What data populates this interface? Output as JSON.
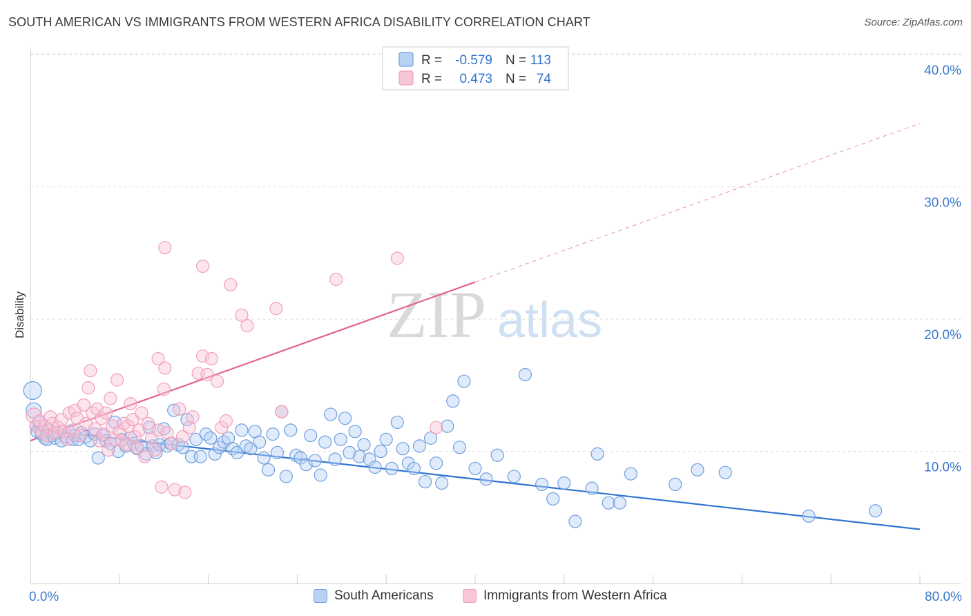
{
  "header": {
    "title": "SOUTH AMERICAN VS IMMIGRANTS FROM WESTERN AFRICA DISABILITY CORRELATION CHART",
    "source": "Source: ZipAtlas.com"
  },
  "watermark": {
    "zip": "ZIP",
    "atlas": "atlas"
  },
  "chart_data": {
    "type": "scatter",
    "title": "SOUTH AMERICAN VS IMMIGRANTS FROM WESTERN AFRICA DISABILITY CORRELATION CHART",
    "xlabel": "",
    "ylabel": "Disability",
    "xlim": [
      0,
      80
    ],
    "ylim": [
      0,
      41
    ],
    "x_tick_labels": [
      {
        "value": 0,
        "label": "0.0%"
      },
      {
        "value": 80,
        "label": "80.0%"
      }
    ],
    "y_tick_labels": [
      {
        "value": 10,
        "label": "10.0%"
      },
      {
        "value": 20,
        "label": "20.0%"
      },
      {
        "value": 30,
        "label": "30.0%"
      },
      {
        "value": 40,
        "label": "40.0%"
      }
    ],
    "grid": "horizontal dashed",
    "legend_position": "top-center",
    "stats": [
      {
        "r_label": "R =",
        "r_value": "-0.579",
        "n_label": "N =",
        "n_value": "113"
      },
      {
        "r_label": "R =",
        "r_value": "0.473",
        "n_label": "N =",
        "n_value": "74"
      }
    ],
    "series": [
      {
        "name": "South Americans",
        "color": "#6f9fe0",
        "line_color": "#2f74d0",
        "trend": {
          "x": [
            0,
            80
          ],
          "y": [
            11.7,
            4.1
          ],
          "dashed_to": null
        },
        "points": [
          [
            0.2,
            14.6
          ],
          [
            0.3,
            13.1
          ],
          [
            0.5,
            11.9
          ],
          [
            0.6,
            11.5
          ],
          [
            0.8,
            12.2
          ],
          [
            1.0,
            11.3
          ],
          [
            1.3,
            11.0
          ],
          [
            1.5,
            10.9
          ],
          [
            1.7,
            11.6
          ],
          [
            2.0,
            11.2
          ],
          [
            2.2,
            11.0
          ],
          [
            2.5,
            11.4
          ],
          [
            2.8,
            10.8
          ],
          [
            3.2,
            11.1
          ],
          [
            3.5,
            11.5
          ],
          [
            3.8,
            10.9
          ],
          [
            4.0,
            11.2
          ],
          [
            4.3,
            10.9
          ],
          [
            4.6,
            11.4
          ],
          [
            5.0,
            11.1
          ],
          [
            5.4,
            10.8
          ],
          [
            5.8,
            11.3
          ],
          [
            6.1,
            9.5
          ],
          [
            6.5,
            11.2
          ],
          [
            6.8,
            10.8
          ],
          [
            7.2,
            10.6
          ],
          [
            7.6,
            12.2
          ],
          [
            7.9,
            10.0
          ],
          [
            8.2,
            10.9
          ],
          [
            8.6,
            10.4
          ],
          [
            9.0,
            11.0
          ],
          [
            9.3,
            10.6
          ],
          [
            9.6,
            10.2
          ],
          [
            10.0,
            10.4
          ],
          [
            10.4,
            9.8
          ],
          [
            10.7,
            11.8
          ],
          [
            11.0,
            10.4
          ],
          [
            11.3,
            9.9
          ],
          [
            11.6,
            10.5
          ],
          [
            12.0,
            11.7
          ],
          [
            12.3,
            10.4
          ],
          [
            12.6,
            10.6
          ],
          [
            12.9,
            13.1
          ],
          [
            13.3,
            10.5
          ],
          [
            13.7,
            10.3
          ],
          [
            14.1,
            12.4
          ],
          [
            14.5,
            9.6
          ],
          [
            14.9,
            10.9
          ],
          [
            15.3,
            9.6
          ],
          [
            15.8,
            11.3
          ],
          [
            16.2,
            11.0
          ],
          [
            16.6,
            9.8
          ],
          [
            17.0,
            10.3
          ],
          [
            17.4,
            10.7
          ],
          [
            17.8,
            11.0
          ],
          [
            18.2,
            10.2
          ],
          [
            18.6,
            9.9
          ],
          [
            19.0,
            11.6
          ],
          [
            19.4,
            10.4
          ],
          [
            19.8,
            10.2
          ],
          [
            20.2,
            11.5
          ],
          [
            20.6,
            10.7
          ],
          [
            21.0,
            9.5
          ],
          [
            21.4,
            8.6
          ],
          [
            21.8,
            11.3
          ],
          [
            22.2,
            9.9
          ],
          [
            22.6,
            13.0
          ],
          [
            23.0,
            8.1
          ],
          [
            23.4,
            11.6
          ],
          [
            23.9,
            9.7
          ],
          [
            24.3,
            9.5
          ],
          [
            24.8,
            9.0
          ],
          [
            25.2,
            11.2
          ],
          [
            25.6,
            9.3
          ],
          [
            26.1,
            8.2
          ],
          [
            26.5,
            10.7
          ],
          [
            27.0,
            12.8
          ],
          [
            27.4,
            9.4
          ],
          [
            27.9,
            10.9
          ],
          [
            28.3,
            12.5
          ],
          [
            28.7,
            9.9
          ],
          [
            29.2,
            11.5
          ],
          [
            29.6,
            9.6
          ],
          [
            30.0,
            10.5
          ],
          [
            30.5,
            9.4
          ],
          [
            31.0,
            8.8
          ],
          [
            31.5,
            10.0
          ],
          [
            32.0,
            10.9
          ],
          [
            32.5,
            8.7
          ],
          [
            33.0,
            12.2
          ],
          [
            33.5,
            10.2
          ],
          [
            34.0,
            9.1
          ],
          [
            34.5,
            8.7
          ],
          [
            35.0,
            10.4
          ],
          [
            35.5,
            7.7
          ],
          [
            36.0,
            11.0
          ],
          [
            36.5,
            9.1
          ],
          [
            37.0,
            7.6
          ],
          [
            37.5,
            11.9
          ],
          [
            38.0,
            13.8
          ],
          [
            38.6,
            10.3
          ],
          [
            39.0,
            15.3
          ],
          [
            40.0,
            8.7
          ],
          [
            41.0,
            7.9
          ],
          [
            42.0,
            9.7
          ],
          [
            43.5,
            8.1
          ],
          [
            44.5,
            15.8
          ],
          [
            46.0,
            7.5
          ],
          [
            47.0,
            6.4
          ],
          [
            48.0,
            7.6
          ],
          [
            49.0,
            4.7
          ],
          [
            50.5,
            7.2
          ],
          [
            51.0,
            9.8
          ],
          [
            52.0,
            6.1
          ],
          [
            53.0,
            6.1
          ],
          [
            54.0,
            8.3
          ],
          [
            58.0,
            7.5
          ],
          [
            60.0,
            8.6
          ],
          [
            62.5,
            8.4
          ],
          [
            70.0,
            5.1
          ],
          [
            76.0,
            5.5
          ]
        ]
      },
      {
        "name": "Immigrants from Western Africa",
        "color": "#f0a0bb",
        "line_color": "#e0638f",
        "trend": {
          "x": [
            0,
            40
          ],
          "y": [
            10.8,
            22.8
          ],
          "dashed_to": {
            "x": 80,
            "y": 34.8
          }
        },
        "points": [
          [
            0.3,
            12.7
          ],
          [
            0.5,
            11.9
          ],
          [
            0.8,
            12.3
          ],
          [
            1.0,
            11.5
          ],
          [
            1.3,
            11.9
          ],
          [
            1.5,
            11.2
          ],
          [
            1.8,
            12.6
          ],
          [
            2.0,
            12.1
          ],
          [
            2.2,
            11.4
          ],
          [
            2.5,
            11.8
          ],
          [
            2.8,
            12.4
          ],
          [
            3.0,
            11.5
          ],
          [
            3.3,
            10.9
          ],
          [
            3.5,
            12.9
          ],
          [
            3.8,
            11.6
          ],
          [
            4.0,
            13.1
          ],
          [
            4.2,
            12.5
          ],
          [
            4.5,
            11.2
          ],
          [
            4.8,
            13.5
          ],
          [
            5.0,
            12.1
          ],
          [
            5.2,
            14.8
          ],
          [
            5.4,
            16.1
          ],
          [
            5.6,
            12.9
          ],
          [
            5.8,
            11.7
          ],
          [
            6.0,
            13.2
          ],
          [
            6.2,
            10.8
          ],
          [
            6.4,
            12.5
          ],
          [
            6.6,
            11.3
          ],
          [
            6.8,
            12.9
          ],
          [
            7.0,
            10.1
          ],
          [
            7.2,
            14.0
          ],
          [
            7.4,
            11.9
          ],
          [
            7.6,
            10.9
          ],
          [
            7.8,
            15.4
          ],
          [
            8.0,
            11.5
          ],
          [
            8.2,
            10.8
          ],
          [
            8.4,
            12.1
          ],
          [
            8.6,
            10.5
          ],
          [
            8.8,
            11.9
          ],
          [
            9.0,
            13.6
          ],
          [
            9.2,
            12.4
          ],
          [
            9.4,
            11.1
          ],
          [
            9.6,
            10.3
          ],
          [
            9.8,
            11.6
          ],
          [
            10.0,
            12.9
          ],
          [
            10.3,
            9.6
          ],
          [
            10.6,
            12.1
          ],
          [
            10.9,
            11.0
          ],
          [
            11.2,
            10.1
          ],
          [
            11.5,
            11.6
          ],
          [
            11.8,
            7.3
          ],
          [
            12.0,
            14.7
          ],
          [
            12.1,
            16.3
          ],
          [
            12.3,
            11.4
          ],
          [
            12.7,
            10.6
          ],
          [
            13.0,
            7.1
          ],
          [
            13.4,
            13.2
          ],
          [
            13.7,
            11.1
          ],
          [
            13.9,
            6.9
          ],
          [
            14.3,
            11.8
          ],
          [
            14.6,
            12.6
          ],
          [
            15.1,
            15.9
          ],
          [
            15.5,
            17.2
          ],
          [
            15.9,
            15.8
          ],
          [
            16.3,
            17.0
          ],
          [
            16.8,
            15.3
          ],
          [
            17.2,
            11.8
          ],
          [
            17.6,
            12.3
          ],
          [
            18.0,
            22.6
          ],
          [
            19.5,
            19.5
          ],
          [
            11.5,
            17.0
          ],
          [
            12.1,
            25.4
          ],
          [
            15.5,
            24.0
          ],
          [
            19.0,
            20.3
          ],
          [
            22.1,
            20.8
          ],
          [
            22.6,
            13.0
          ],
          [
            27.5,
            23.0
          ],
          [
            33.0,
            24.6
          ],
          [
            36.5,
            11.8
          ]
        ]
      }
    ]
  }
}
